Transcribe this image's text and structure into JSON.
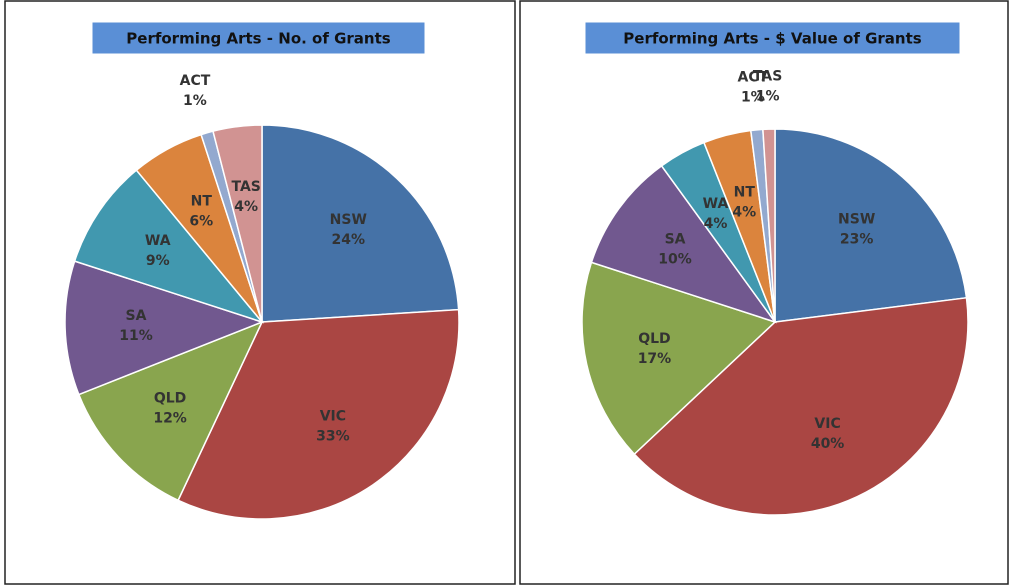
{
  "chart_data": [
    {
      "type": "pie",
      "title": "Performing  Arts  - No. of Grants",
      "categories": [
        "NSW",
        "VIC",
        "QLD",
        "SA",
        "WA",
        "NT",
        "ACT",
        "TAS"
      ],
      "values": [
        24,
        33,
        12,
        11,
        9,
        6,
        1,
        4
      ],
      "value_labels": [
        "24%",
        "33%",
        "12%",
        "11%",
        "9%",
        "6%",
        "1%",
        "4%"
      ],
      "colors": [
        "#4572a7",
        "#aa4643",
        "#89a54e",
        "#71588f",
        "#4198af",
        "#db843d",
        "#93a9cf",
        "#d19392"
      ]
    },
    {
      "type": "pie",
      "title": "Performing  Arts  - $ Value of Grants",
      "categories": [
        "NSW",
        "VIC",
        "QLD",
        "SA",
        "WA",
        "NT",
        "ACT",
        "TAS"
      ],
      "values": [
        23,
        40,
        17,
        10,
        4,
        4,
        1,
        1
      ],
      "value_labels": [
        "23%",
        "40%",
        "17%",
        "10%",
        "4%",
        "4%",
        "1%",
        "1%"
      ],
      "colors": [
        "#4572a7",
        "#aa4643",
        "#89a54e",
        "#71588f",
        "#4198af",
        "#db843d",
        "#93a9cf",
        "#d19392"
      ]
    }
  ]
}
